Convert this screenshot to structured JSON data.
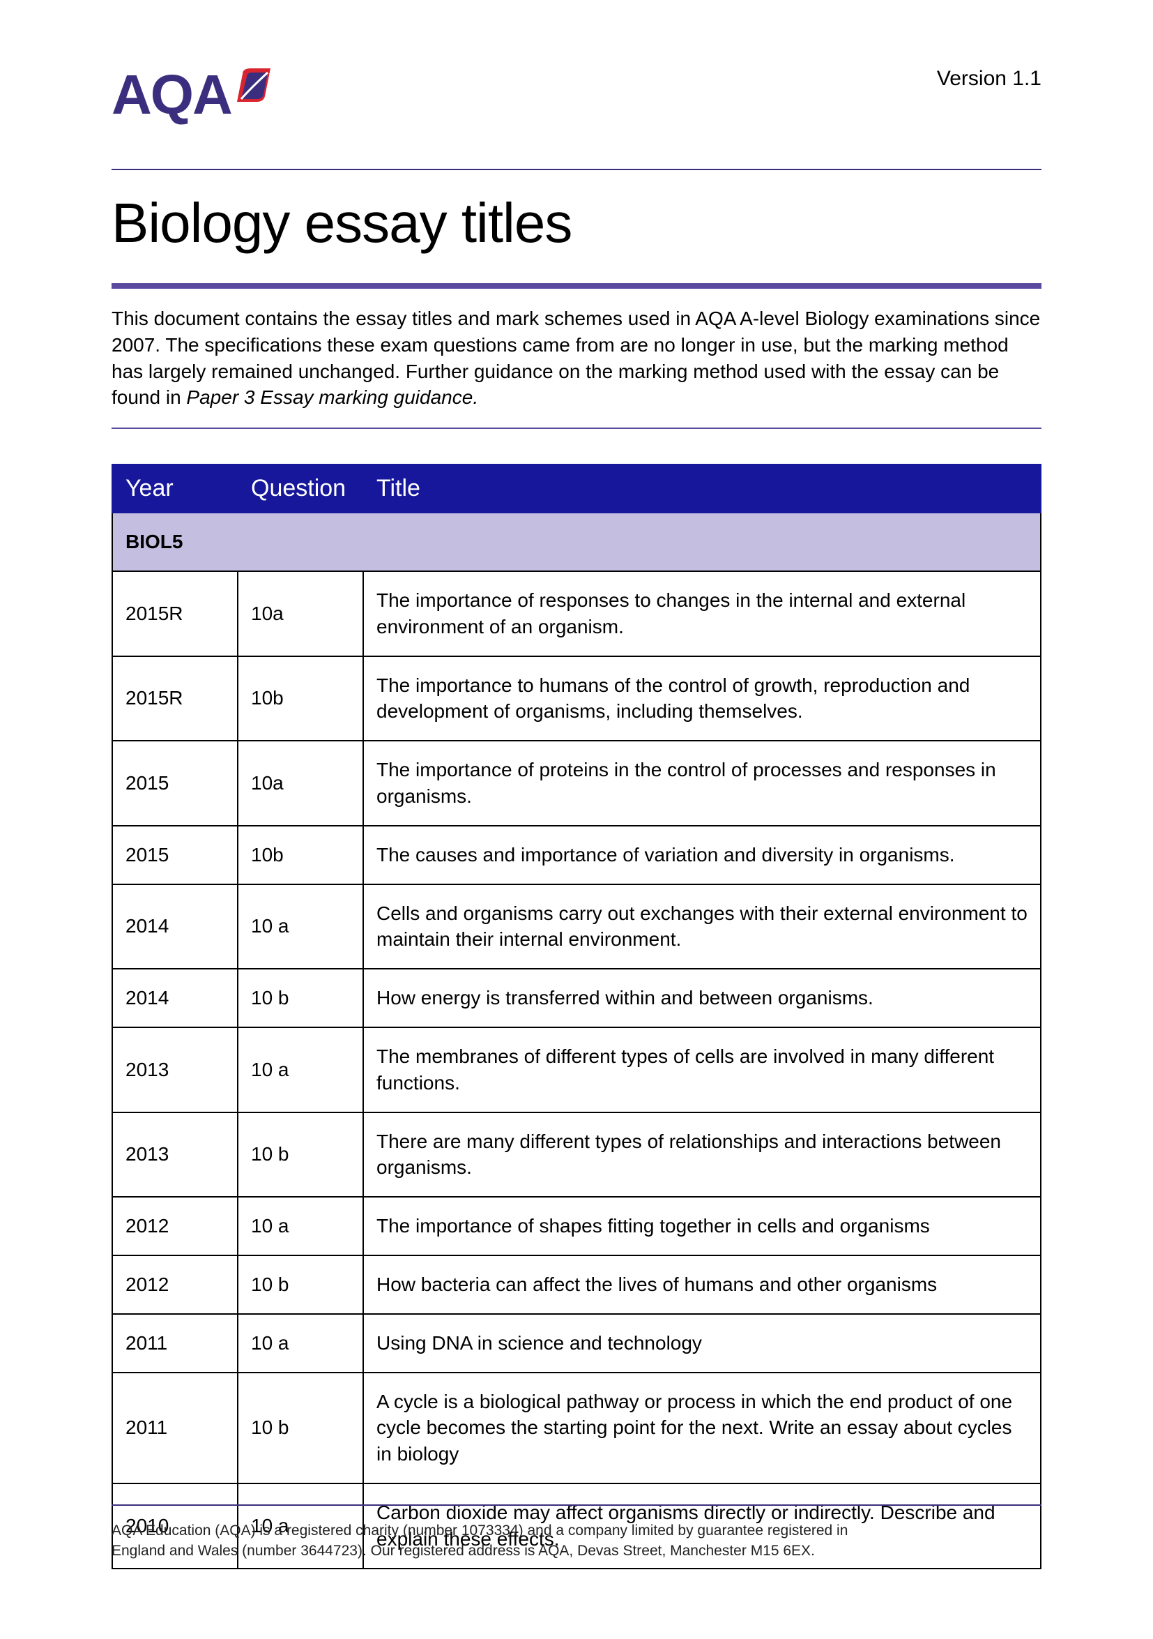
{
  "version_label": "Version 1.1",
  "logo_text": "AQA",
  "page_title": "Biology essay titles",
  "intro_text_before": "This document contains the essay titles and mark schemes used in AQA A-level Biology examinations since 2007. The specifications these exam questions came from are no longer in use, but the marking method has largely remained unchanged. Further guidance on the marking method used with the essay can be found in ",
  "intro_text_italic": "Paper 3 Essay marking guidance.",
  "table": {
    "headers": {
      "year": "Year",
      "question": "Question",
      "title": "Title"
    },
    "section_label": "BIOL5",
    "rows": [
      {
        "year": "2015R",
        "question": "10a",
        "title": "The importance of responses to changes in the internal and external environment of an organism."
      },
      {
        "year": "2015R",
        "question": "10b",
        "title": "The importance to humans of the control of growth, reproduction and development of organisms, including themselves."
      },
      {
        "year": "2015",
        "question": "10a",
        "title": "The importance of proteins in the control of processes and responses in organisms."
      },
      {
        "year": "2015",
        "question": "10b",
        "title": "The causes and importance of variation and diversity in organisms."
      },
      {
        "year": "2014",
        "question": "10 a",
        "title": "Cells and organisms carry out exchanges with their external environment to maintain their internal environment."
      },
      {
        "year": "2014",
        "question": "10 b",
        "title": "How energy is transferred within and between organisms."
      },
      {
        "year": "2013",
        "question": "10 a",
        "title": "The membranes of different types of cells are involved in many different functions."
      },
      {
        "year": "2013",
        "question": "10 b",
        "title": "There are many different types of relationships and interactions between organisms."
      },
      {
        "year": "2012",
        "question": "10 a",
        "title": "The importance of shapes fitting together in cells and organisms"
      },
      {
        "year": "2012",
        "question": "10 b",
        "title": "How bacteria can affect the lives of humans and other organisms"
      },
      {
        "year": "2011",
        "question": "10 a",
        "title": "Using DNA in science and technology"
      },
      {
        "year": "2011",
        "question": "10 b",
        "title": "A cycle is a biological pathway or process in which the end product of one cycle becomes the starting point for the next. Write an essay about cycles in biology"
      },
      {
        "year": "2010",
        "question": "10 a",
        "title": "Carbon dioxide may affect organisms directly or indirectly. Describe and explain these effects."
      }
    ]
  },
  "footer_line1": "AQA Education (AQA) is a registered charity (number 1073334) and a company limited by guarantee registered in",
  "footer_line2": "England and Wales (number 3644723). Our registered address is AQA, Devas Street, Manchester M15 6EX.",
  "colors": {
    "brand_purple": "#3b2e7e",
    "brand_red": "#d8252f",
    "header_bg": "#17179b",
    "section_bg": "#c4bfe0"
  }
}
